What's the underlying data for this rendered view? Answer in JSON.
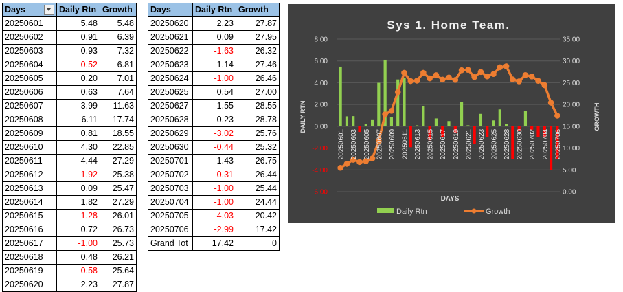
{
  "table1": {
    "headers": [
      "Days",
      "Daily Rtn",
      "Growth"
    ],
    "rows": [
      [
        "20250601",
        "5.48",
        "5.48"
      ],
      [
        "20250602",
        "0.91",
        "6.39"
      ],
      [
        "20250603",
        "0.93",
        "7.32"
      ],
      [
        "20250604",
        "-0.52",
        "6.81"
      ],
      [
        "20250605",
        "0.20",
        "7.01"
      ],
      [
        "20250606",
        "0.63",
        "7.64"
      ],
      [
        "20250607",
        "3.99",
        "11.63"
      ],
      [
        "20250608",
        "6.11",
        "17.74"
      ],
      [
        "20250609",
        "0.81",
        "18.55"
      ],
      [
        "20250610",
        "4.30",
        "22.85"
      ],
      [
        "20250611",
        "4.44",
        "27.29"
      ],
      [
        "20250612",
        "-1.92",
        "25.38"
      ],
      [
        "20250613",
        "0.09",
        "25.47"
      ],
      [
        "20250614",
        "1.82",
        "27.29"
      ],
      [
        "20250615",
        "-1.28",
        "26.01"
      ],
      [
        "20250616",
        "0.72",
        "26.73"
      ],
      [
        "20250617",
        "-1.00",
        "25.73"
      ],
      [
        "20250618",
        "0.48",
        "26.21"
      ],
      [
        "20250619",
        "-0.58",
        "25.64"
      ],
      [
        "20250620",
        "2.23",
        "27.87"
      ]
    ]
  },
  "table2": {
    "headers": [
      "Days",
      "Daily Rtn",
      "Growth"
    ],
    "rows": [
      [
        "20250620",
        "2.23",
        "27.87"
      ],
      [
        "20250621",
        "0.09",
        "27.95"
      ],
      [
        "20250622",
        "-1.63",
        "26.32"
      ],
      [
        "20250623",
        "1.14",
        "27.46"
      ],
      [
        "20250624",
        "-1.00",
        "26.46"
      ],
      [
        "20250625",
        "0.54",
        "27.00"
      ],
      [
        "20250627",
        "1.55",
        "28.55"
      ],
      [
        "20250628",
        "0.23",
        "28.78"
      ],
      [
        "20250629",
        "-3.02",
        "25.76"
      ],
      [
        "20250630",
        "-0.44",
        "25.32"
      ],
      [
        "20250701",
        "1.43",
        "26.75"
      ],
      [
        "20250702",
        "-0.31",
        "26.44"
      ],
      [
        "20250703",
        "-1.00",
        "25.44"
      ],
      [
        "20250704",
        "-1.00",
        "24.44"
      ],
      [
        "20250705",
        "-4.03",
        "20.42"
      ],
      [
        "20250706",
        "-2.99",
        "17.42"
      ]
    ],
    "total": [
      "Grand Tot",
      "17.42",
      "0"
    ]
  },
  "colors": {
    "header_bg": "#9bc2e6",
    "negative": "#ff0000",
    "chart_bg": "#404040",
    "bar_positive": "#92d050",
    "bar_negative": "#ff0000",
    "line": "#ed7d31"
  },
  "chart_data": {
    "type": "bar",
    "title": "Sys 1. Home Team.",
    "xlabel": "DAYS",
    "ylabel": "DAILY RTN",
    "y2label": "GROWTH",
    "ylim": [
      -6,
      8
    ],
    "y2lim": [
      0,
      35
    ],
    "ytick_labels": [
      "8.00",
      "6.00",
      "4.00",
      "2.00",
      "0.00",
      "-2.00",
      "-4.00",
      "-6.00"
    ],
    "y2tick_labels": [
      "35.00",
      "30.00",
      "25.00",
      "20.00",
      "15.00",
      "10.00",
      "5.00",
      "0.00"
    ],
    "xtick_labels": [
      "20250601",
      "20250603",
      "20250605",
      "20250607",
      "20250609",
      "20250611",
      "20250613",
      "20250615",
      "20250617",
      "20250619",
      "20250621",
      "20250623",
      "20250625",
      "20250628",
      "20250630",
      "20250702",
      "20250704",
      "20250706"
    ],
    "categories": [
      "20250601",
      "20250602",
      "20250603",
      "20250604",
      "20250605",
      "20250606",
      "20250607",
      "20250608",
      "20250609",
      "20250610",
      "20250611",
      "20250612",
      "20250613",
      "20250614",
      "20250615",
      "20250616",
      "20250617",
      "20250618",
      "20250619",
      "20250620",
      "20250621",
      "20250622",
      "20250623",
      "20250624",
      "20250625",
      "20250627",
      "20250628",
      "20250629",
      "20250630",
      "20250701",
      "20250702",
      "20250703",
      "20250704",
      "20250705",
      "20250706"
    ],
    "series": [
      {
        "name": "Daily Rtn",
        "type": "bar",
        "axis": "left",
        "values": [
          5.48,
          0.91,
          0.93,
          -0.52,
          0.2,
          0.63,
          3.99,
          6.11,
          0.81,
          4.3,
          4.44,
          -1.92,
          0.09,
          1.82,
          -1.28,
          0.72,
          -1.0,
          0.48,
          -0.58,
          2.23,
          0.09,
          -1.63,
          1.14,
          -1.0,
          0.54,
          1.55,
          0.23,
          -3.02,
          -0.44,
          1.43,
          -0.31,
          -1.0,
          -1.0,
          -4.03,
          -2.99
        ]
      },
      {
        "name": "Growth",
        "type": "line",
        "axis": "right",
        "values": [
          5.48,
          6.39,
          7.32,
          6.81,
          7.01,
          7.64,
          11.63,
          17.74,
          18.55,
          22.85,
          27.29,
          25.38,
          25.47,
          27.29,
          26.01,
          26.73,
          25.73,
          26.21,
          25.64,
          27.87,
          27.95,
          26.32,
          27.46,
          26.46,
          27.0,
          28.55,
          28.78,
          25.76,
          25.32,
          26.75,
          26.44,
          25.44,
          24.44,
          20.42,
          17.42
        ]
      }
    ],
    "legend_position": "bottom",
    "grid": true
  }
}
